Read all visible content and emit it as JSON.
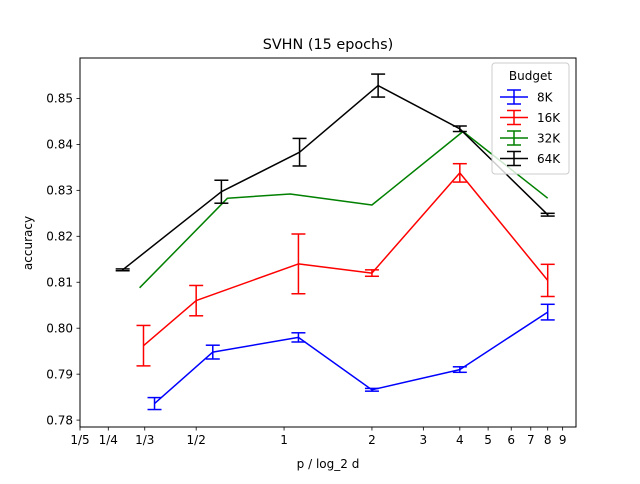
{
  "chart_data": {
    "type": "line",
    "title": "SVHN (15 epochs)",
    "xlabel": "p / log_2 d",
    "ylabel": "accuracy",
    "xscale": "log",
    "xlim": [
      0.2,
      10
    ],
    "ylim": [
      0.7785,
      0.8588
    ],
    "grid": false,
    "legend_position": "top-right",
    "legend_title": "Budget",
    "x_ticks": [
      {
        "value": 0.2,
        "label": "1/5"
      },
      {
        "value": 0.25,
        "label": "1/4"
      },
      {
        "value": 0.3333,
        "label": "1/3"
      },
      {
        "value": 0.5,
        "label": "1/2"
      },
      {
        "value": 1,
        "label": "1"
      },
      {
        "value": 2,
        "label": "2"
      },
      {
        "value": 3,
        "label": "3"
      },
      {
        "value": 4,
        "label": "4"
      },
      {
        "value": 5,
        "label": "5"
      },
      {
        "value": 6,
        "label": "6"
      },
      {
        "value": 7,
        "label": "7"
      },
      {
        "value": 8,
        "label": "8"
      },
      {
        "value": 9,
        "label": "9"
      }
    ],
    "y_ticks": [
      {
        "value": 0.78,
        "label": "0.78"
      },
      {
        "value": 0.79,
        "label": "0.79"
      },
      {
        "value": 0.8,
        "label": "0.80"
      },
      {
        "value": 0.81,
        "label": "0.81"
      },
      {
        "value": 0.82,
        "label": "0.82"
      },
      {
        "value": 0.83,
        "label": "0.83"
      },
      {
        "value": 0.84,
        "label": "0.84"
      },
      {
        "value": 0.85,
        "label": "0.85"
      }
    ],
    "series": [
      {
        "name": "8K",
        "color": "#0000ff",
        "x": [
          0.36,
          0.57,
          1.12,
          2.0,
          4.0,
          8.0
        ],
        "y": [
          0.7836,
          0.7948,
          0.798,
          0.7866,
          0.791,
          0.8035
        ],
        "err": [
          0.0013,
          0.0015,
          0.001,
          0.0003,
          0.0006,
          0.0017
        ]
      },
      {
        "name": "16K",
        "color": "#ff0000",
        "x": [
          0.33,
          0.5,
          1.12,
          2.0,
          4.0,
          8.0
        ],
        "y": [
          0.7962,
          0.806,
          0.814,
          0.812,
          0.8338,
          0.8104
        ],
        "err": [
          0.0044,
          0.0033,
          0.0065,
          0.0007,
          0.002,
          0.0035
        ]
      },
      {
        "name": "32K",
        "color": "#008000",
        "x": [
          0.32,
          0.64,
          1.05,
          2.0,
          4.1,
          8.0
        ],
        "y": [
          0.8088,
          0.8283,
          0.8292,
          0.8268,
          0.8428,
          0.8283
        ]
      },
      {
        "name": "64K",
        "color": "#000000",
        "x": [
          0.28,
          0.61,
          1.13,
          2.1,
          4.0,
          8.0
        ],
        "y": [
          0.8127,
          0.8297,
          0.8383,
          0.8528,
          0.8434,
          0.8247
        ],
        "err": [
          0.0002,
          0.0025,
          0.003,
          0.0025,
          0.0006,
          0.0003
        ]
      }
    ]
  }
}
